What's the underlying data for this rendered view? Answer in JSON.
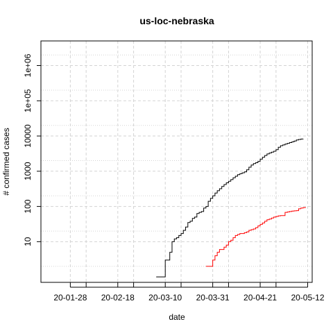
{
  "chart_data": {
    "type": "line",
    "title": "us-loc-nebraska",
    "xlabel": "date",
    "ylabel": "# confirmed cases",
    "x_type": "date",
    "xlim": [
      "2020-01-15",
      "2020-05-14"
    ],
    "ylim": [
      0.7,
      5000000
    ],
    "y_scale": "log",
    "grid": true,
    "legend": "none",
    "x_ticks": [
      {
        "date": "2020-01-28",
        "label": "20-01-28"
      },
      {
        "date": "2020-02-18",
        "label": "20-02-18"
      },
      {
        "date": "2020-03-10",
        "label": "20-03-10"
      },
      {
        "date": "2020-03-31",
        "label": "20-03-31"
      },
      {
        "date": "2020-04-21",
        "label": "20-04-21"
      },
      {
        "date": "2020-05-12",
        "label": "20-05-12"
      }
    ],
    "x_minor_ticks": [
      "2020-02-04",
      "2020-02-25",
      "2020-03-17",
      "2020-04-07",
      "2020-04-28"
    ],
    "y_ticks": [
      {
        "value": 10,
        "label": "10"
      },
      {
        "value": 100,
        "label": "100"
      },
      {
        "value": 1000,
        "label": "1000"
      },
      {
        "value": 10000,
        "label": "10000"
      },
      {
        "value": 100000,
        "label": "1e+05"
      },
      {
        "value": 1000000,
        "label": "1e+06"
      }
    ],
    "y_minor_gridlines": [
      2,
      20,
      200,
      2000,
      20000,
      200000,
      2000000
    ],
    "series": [
      {
        "color": "#000000",
        "points": [
          [
            "2020-03-06",
            1
          ],
          [
            "2020-03-07",
            1
          ],
          [
            "2020-03-08",
            1
          ],
          [
            "2020-03-09",
            1
          ],
          [
            "2020-03-10",
            3
          ],
          [
            "2020-03-11",
            3
          ],
          [
            "2020-03-12",
            5
          ],
          [
            "2020-03-13",
            10
          ],
          [
            "2020-03-14",
            12
          ],
          [
            "2020-03-15",
            13
          ],
          [
            "2020-03-16",
            15
          ],
          [
            "2020-03-17",
            17
          ],
          [
            "2020-03-18",
            21
          ],
          [
            "2020-03-19",
            26
          ],
          [
            "2020-03-20",
            35
          ],
          [
            "2020-03-21",
            38
          ],
          [
            "2020-03-22",
            46
          ],
          [
            "2020-03-23",
            50
          ],
          [
            "2020-03-24",
            63
          ],
          [
            "2020-03-25",
            68
          ],
          [
            "2020-03-26",
            72
          ],
          [
            "2020-03-27",
            90
          ],
          [
            "2020-03-28",
            100
          ],
          [
            "2020-03-29",
            140
          ],
          [
            "2020-03-30",
            170
          ],
          [
            "2020-03-31",
            200
          ],
          [
            "2020-04-01",
            240
          ],
          [
            "2020-04-02",
            280
          ],
          [
            "2020-04-03",
            320
          ],
          [
            "2020-04-04",
            370
          ],
          [
            "2020-04-05",
            420
          ],
          [
            "2020-04-06",
            470
          ],
          [
            "2020-04-07",
            520
          ],
          [
            "2020-04-08",
            580
          ],
          [
            "2020-04-09",
            650
          ],
          [
            "2020-04-10",
            720
          ],
          [
            "2020-04-11",
            800
          ],
          [
            "2020-04-12",
            850
          ],
          [
            "2020-04-13",
            900
          ],
          [
            "2020-04-14",
            960
          ],
          [
            "2020-04-15",
            1100
          ],
          [
            "2020-04-16",
            1300
          ],
          [
            "2020-04-17",
            1500
          ],
          [
            "2020-04-18",
            1650
          ],
          [
            "2020-04-19",
            1750
          ],
          [
            "2020-04-20",
            1900
          ],
          [
            "2020-04-21",
            2200
          ],
          [
            "2020-04-22",
            2500
          ],
          [
            "2020-04-23",
            2800
          ],
          [
            "2020-04-24",
            3100
          ],
          [
            "2020-04-25",
            3300
          ],
          [
            "2020-04-26",
            3500
          ],
          [
            "2020-04-27",
            3700
          ],
          [
            "2020-04-28",
            4100
          ],
          [
            "2020-04-29",
            4800
          ],
          [
            "2020-04-30",
            5300
          ],
          [
            "2020-05-01",
            5600
          ],
          [
            "2020-05-02",
            5900
          ],
          [
            "2020-05-03",
            6200
          ],
          [
            "2020-05-04",
            6500
          ],
          [
            "2020-05-05",
            6800
          ],
          [
            "2020-05-06",
            7200
          ],
          [
            "2020-05-07",
            7700
          ],
          [
            "2020-05-08",
            8000
          ],
          [
            "2020-05-09",
            8200
          ],
          [
            "2020-05-10",
            8300
          ]
        ]
      },
      {
        "color": "#ff0000",
        "points": [
          [
            "2020-03-28",
            2
          ],
          [
            "2020-03-29",
            2
          ],
          [
            "2020-03-30",
            2
          ],
          [
            "2020-03-31",
            3
          ],
          [
            "2020-04-01",
            4
          ],
          [
            "2020-04-02",
            5
          ],
          [
            "2020-04-03",
            6
          ],
          [
            "2020-04-04",
            6
          ],
          [
            "2020-04-05",
            7
          ],
          [
            "2020-04-06",
            8
          ],
          [
            "2020-04-07",
            10
          ],
          [
            "2020-04-08",
            11
          ],
          [
            "2020-04-09",
            13
          ],
          [
            "2020-04-10",
            15
          ],
          [
            "2020-04-11",
            16
          ],
          [
            "2020-04-12",
            17
          ],
          [
            "2020-04-13",
            17
          ],
          [
            "2020-04-14",
            18
          ],
          [
            "2020-04-15",
            19
          ],
          [
            "2020-04-16",
            21
          ],
          [
            "2020-04-17",
            22
          ],
          [
            "2020-04-18",
            23
          ],
          [
            "2020-04-19",
            25
          ],
          [
            "2020-04-20",
            28
          ],
          [
            "2020-04-21",
            31
          ],
          [
            "2020-04-22",
            34
          ],
          [
            "2020-04-23",
            38
          ],
          [
            "2020-04-24",
            42
          ],
          [
            "2020-04-25",
            44
          ],
          [
            "2020-04-26",
            47
          ],
          [
            "2020-04-27",
            50
          ],
          [
            "2020-04-28",
            52
          ],
          [
            "2020-04-29",
            54
          ],
          [
            "2020-04-30",
            55
          ],
          [
            "2020-05-01",
            55
          ],
          [
            "2020-05-02",
            68
          ],
          [
            "2020-05-03",
            70
          ],
          [
            "2020-05-04",
            72
          ],
          [
            "2020-05-05",
            74
          ],
          [
            "2020-05-06",
            75
          ],
          [
            "2020-05-07",
            76
          ],
          [
            "2020-05-08",
            86
          ],
          [
            "2020-05-09",
            90
          ],
          [
            "2020-05-10",
            93
          ],
          [
            "2020-05-11",
            96
          ]
        ]
      }
    ]
  }
}
